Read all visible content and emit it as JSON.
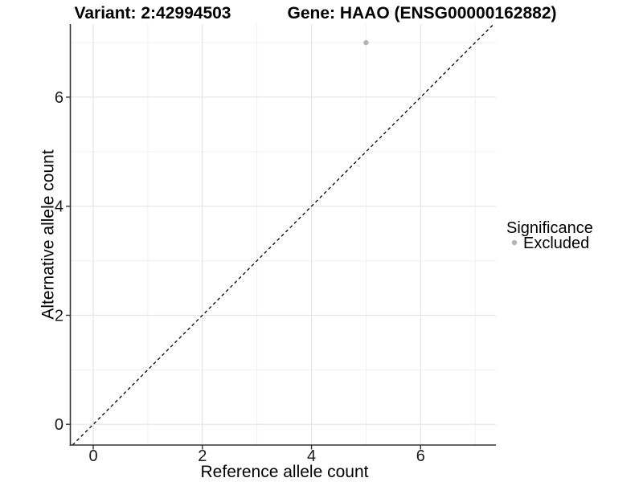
{
  "titles": {
    "variant": "Variant: 2:42994503",
    "gene": "Gene: HAAO (ENSG00000162882)"
  },
  "chart_data": {
    "type": "scatter",
    "title_left": "Variant: 2:42994503",
    "title_right": "Gene: HAAO (ENSG00000162882)",
    "xlabel": "Reference allele count",
    "ylabel": "Alternative allele count",
    "xlim": [
      -0.42,
      7.38
    ],
    "ylim": [
      -0.38,
      7.34
    ],
    "x_major_ticks": [
      0,
      2,
      4,
      6
    ],
    "x_minor_ticks": [
      1,
      3,
      5,
      7
    ],
    "y_major_ticks": [
      0,
      2,
      4,
      6
    ],
    "y_minor_ticks": [
      1,
      3,
      5,
      7
    ],
    "grid": true,
    "series": [
      {
        "name": "Excluded",
        "color": "#b4b4b4",
        "marker": "circle",
        "points": [
          {
            "x": 5,
            "y": 7
          }
        ]
      }
    ],
    "reference_line": {
      "type": "identity",
      "style": "dashed",
      "color": "#000000",
      "from": [
        -0.38,
        -0.38
      ],
      "to": [
        7.34,
        7.34
      ]
    },
    "legend": {
      "title": "Significance",
      "position": "right",
      "items": [
        {
          "label": "Excluded",
          "color": "#b4b4b4",
          "marker": "circle"
        }
      ]
    }
  },
  "colors": {
    "grid_major": "#e4e4e4",
    "grid_minor": "#f0f0f0",
    "axis_line": "#333333",
    "tick": "#333333",
    "point": "#b4b4b4",
    "dashed_line": "#000000"
  }
}
